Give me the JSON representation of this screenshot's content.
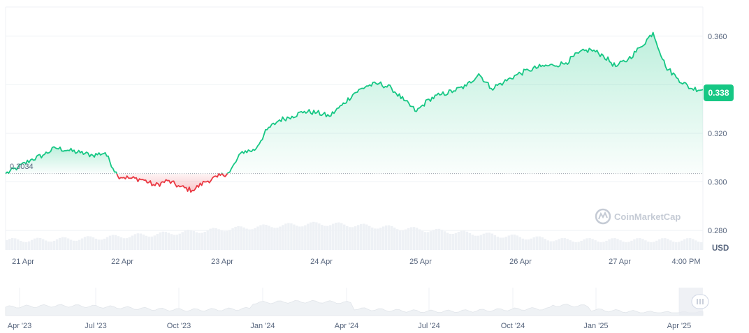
{
  "chart_data": {
    "type": "line",
    "unit": "USD",
    "watermark": "CoinMarketCap",
    "baseline_value": 0.3034,
    "baseline_label": "0.3034",
    "current_value": 0.338,
    "current_label": "0.338",
    "ylim": [
      0.272,
      0.372
    ],
    "y_ticks": [
      {
        "value": 0.36,
        "label": "0.360"
      },
      {
        "value": 0.34,
        "label": ""
      },
      {
        "value": 0.32,
        "label": "0.320"
      },
      {
        "value": 0.3,
        "label": "0.300"
      },
      {
        "value": 0.28,
        "label": "0.280"
      }
    ],
    "x_ticks": [
      "21 Apr",
      "22 Apr",
      "23 Apr",
      "24 Apr",
      "25 Apr",
      "26 Apr",
      "27 Apr",
      "4:00 PM"
    ],
    "grid": true,
    "colors": {
      "up": "#16c784",
      "down": "#ea3943",
      "volume": "#eff2f5",
      "grid": "#eff2f5"
    },
    "series": [
      {
        "x": [
          "20 Apr 18:00",
          "20 Apr 21:00",
          "21 Apr 00:00",
          "21 Apr 03:00",
          "21 Apr 06:00",
          "21 Apr 09:00",
          "21 Apr 12:00",
          "21 Apr 15:00",
          "21 Apr 18:00",
          "21 Apr 21:00",
          "22 Apr 00:00",
          "22 Apr 03:00",
          "22 Apr 06:00",
          "22 Apr 09:00",
          "22 Apr 12:00",
          "22 Apr 15:00",
          "22 Apr 18:00",
          "22 Apr 21:00",
          "23 Apr 00:00",
          "23 Apr 03:00",
          "23 Apr 06:00",
          "23 Apr 09:00",
          "23 Apr 12:00",
          "23 Apr 15:00",
          "23 Apr 18:00",
          "23 Apr 21:00",
          "24 Apr 00:00",
          "24 Apr 03:00",
          "24 Apr 06:00",
          "24 Apr 09:00",
          "24 Apr 12:00",
          "24 Apr 15:00",
          "24 Apr 18:00",
          "24 Apr 21:00",
          "25 Apr 00:00",
          "25 Apr 03:00",
          "25 Apr 06:00",
          "25 Apr 09:00",
          "25 Apr 12:00",
          "25 Apr 15:00",
          "25 Apr 18:00",
          "25 Apr 21:00",
          "26 Apr 00:00",
          "26 Apr 03:00",
          "26 Apr 06:00",
          "26 Apr 09:00",
          "26 Apr 12:00",
          "26 Apr 15:00",
          "26 Apr 18:00",
          "26 Apr 21:00",
          "27 Apr 00:00",
          "27 Apr 03:00",
          "27 Apr 06:00",
          "27 Apr 09:00",
          "27 Apr 12:00",
          "27 Apr 15:00",
          "27 Apr 18:00"
        ],
        "values": [
          0.3034,
          0.306,
          0.309,
          0.311,
          0.314,
          0.313,
          0.312,
          0.311,
          0.312,
          0.3025,
          0.3015,
          0.301,
          0.2985,
          0.3005,
          0.298,
          0.2965,
          0.3,
          0.302,
          0.304,
          0.3125,
          0.313,
          0.3215,
          0.3255,
          0.327,
          0.329,
          0.3285,
          0.327,
          0.3315,
          0.3365,
          0.3395,
          0.3405,
          0.3385,
          0.3335,
          0.329,
          0.334,
          0.336,
          0.3375,
          0.3395,
          0.3445,
          0.3385,
          0.341,
          0.344,
          0.346,
          0.3475,
          0.348,
          0.349,
          0.353,
          0.3545,
          0.352,
          0.3475,
          0.3505,
          0.3555,
          0.3615,
          0.3475,
          0.3425,
          0.3385,
          0.338
        ]
      }
    ],
    "navigator": {
      "x_ticks": [
        "Apr '23",
        "Jul '23",
        "Oct '23",
        "Jan '24",
        "Apr '24",
        "Jul '24",
        "Oct '24",
        "Jan '25",
        "Apr '25"
      ],
      "handle_icon": "drag-handle-icon"
    }
  }
}
